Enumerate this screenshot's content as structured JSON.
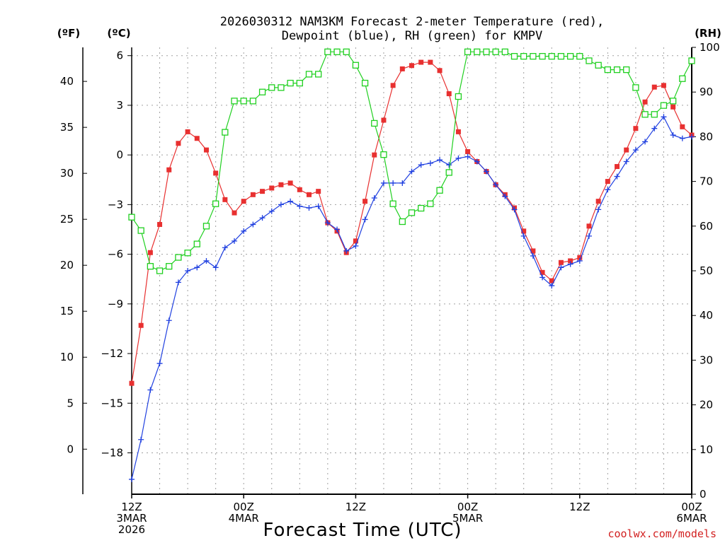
{
  "chart_data": {
    "type": "line",
    "title_line1": "2026030312 NAM3KM Forecast 2-meter Temperature (red),",
    "title_line2": "Dewpoint (blue), RH (green) for KMPV",
    "unit_f": "(ºF)",
    "unit_c": "(ºC)",
    "unit_rh": "(RH)",
    "xlabel": "Forecast Time (UTC)",
    "credit": "coolwx.com/models",
    "x_range_hours": [
      0,
      60
    ],
    "y_celsius_range": [
      -20.5,
      6.5
    ],
    "y_rh_range": [
      0,
      100
    ],
    "celsius_ticks": [
      -18,
      -15,
      -12,
      -9,
      -6,
      -3,
      0,
      3,
      6
    ],
    "fahrenheit_ticks": [
      0,
      5,
      10,
      15,
      20,
      25,
      30,
      35,
      40
    ],
    "rh_ticks": [
      0,
      10,
      20,
      30,
      40,
      50,
      60,
      70,
      80,
      90,
      100
    ],
    "x_ticks": [
      {
        "hour": 0,
        "lines": [
          "12Z",
          "3MAR",
          "2026"
        ]
      },
      {
        "hour": 12,
        "lines": [
          "00Z",
          "4MAR"
        ]
      },
      {
        "hour": 24,
        "lines": [
          "12Z"
        ]
      },
      {
        "hour": 36,
        "lines": [
          "00Z",
          "5MAR"
        ]
      },
      {
        "hour": 48,
        "lines": [
          "12Z"
        ]
      },
      {
        "hour": 60,
        "lines": [
          "00Z",
          "6MAR"
        ]
      }
    ],
    "series": [
      {
        "name": "Temperature",
        "units": "C",
        "color": "#e83030",
        "marker": "filled-square",
        "values": [
          -13.8,
          -10.3,
          -5.9,
          -4.2,
          -0.9,
          0.7,
          1.4,
          1.0,
          0.3,
          -1.1,
          -2.7,
          -3.5,
          -2.8,
          -2.4,
          -2.2,
          -2.0,
          -1.8,
          -1.7,
          -2.1,
          -2.4,
          -2.2,
          -4.1,
          -4.6,
          -5.9,
          -5.2,
          -2.8,
          0.0,
          2.1,
          4.2,
          5.2,
          5.4,
          5.6,
          5.6,
          5.1,
          3.7,
          1.4,
          0.2,
          -0.4,
          -1.0,
          -1.8,
          -2.4,
          -3.2,
          -4.6,
          -5.8,
          -7.1,
          -7.6,
          -6.5,
          -6.4,
          -6.2,
          -4.3,
          -2.8,
          -1.6,
          -0.7,
          0.3,
          1.6,
          3.2,
          4.1,
          4.2,
          2.9,
          1.7,
          1.2
        ]
      },
      {
        "name": "Dewpoint",
        "units": "C",
        "color": "#2040e0",
        "marker": "plus",
        "values": [
          -19.6,
          -17.2,
          -14.2,
          -12.6,
          -10.0,
          -7.7,
          -7.0,
          -6.8,
          -6.4,
          -6.8,
          -5.6,
          -5.2,
          -4.6,
          -4.2,
          -3.8,
          -3.4,
          -3.0,
          -2.8,
          -3.1,
          -3.2,
          -3.1,
          -4.1,
          -4.5,
          -5.8,
          -5.5,
          -3.9,
          -2.6,
          -1.7,
          -1.7,
          -1.7,
          -1.0,
          -0.6,
          -0.5,
          -0.3,
          -0.6,
          -0.2,
          -0.1,
          -0.4,
          -1.0,
          -1.8,
          -2.5,
          -3.3,
          -4.9,
          -6.1,
          -7.4,
          -7.9,
          -6.8,
          -6.6,
          -6.4,
          -4.9,
          -3.3,
          -2.1,
          -1.3,
          -0.4,
          0.3,
          0.8,
          1.6,
          2.3,
          1.2,
          1.0,
          1.1
        ]
      },
      {
        "name": "RH",
        "units": "%",
        "color": "#20d020",
        "marker": "open-square",
        "values": [
          62,
          59,
          51,
          50,
          51,
          53,
          54,
          56,
          60,
          65,
          81,
          88,
          88,
          88,
          90,
          91,
          91,
          92,
          92,
          94,
          94,
          99,
          99,
          99,
          96,
          92,
          83,
          76,
          65,
          61,
          63,
          64,
          65,
          68,
          72,
          89,
          99,
          99,
          99,
          99,
          99,
          98,
          98,
          98,
          98,
          98,
          98,
          98,
          98,
          97,
          96,
          95,
          95,
          95,
          91,
          85,
          85,
          87,
          88,
          93,
          97
        ]
      }
    ]
  }
}
